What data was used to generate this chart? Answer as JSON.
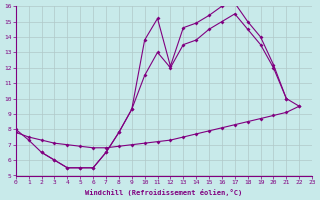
{
  "xlabel": "Windchill (Refroidissement éolien,°C)",
  "bg_color": "#c8eaea",
  "line_color": "#800080",
  "grid_color": "#b0c8c8",
  "line1_x": [
    0,
    1,
    2,
    3,
    4,
    5,
    6,
    7,
    8,
    9,
    10,
    11,
    12,
    13,
    14,
    15,
    16,
    17,
    18,
    19,
    20,
    21
  ],
  "line1_y": [
    8.0,
    7.3,
    6.5,
    6.0,
    5.5,
    5.5,
    5.5,
    6.5,
    7.8,
    9.3,
    13.8,
    15.2,
    12.1,
    14.6,
    14.9,
    15.4,
    16.0,
    16.2,
    15.0,
    14.0,
    12.2,
    10.0
  ],
  "line2_x": [
    0,
    1,
    2,
    3,
    4,
    5,
    6,
    7,
    8,
    9,
    10,
    11,
    12,
    13,
    14,
    15,
    16,
    17,
    18,
    19,
    20,
    21,
    22
  ],
  "line2_y": [
    7.8,
    7.5,
    7.3,
    7.1,
    7.0,
    6.9,
    6.8,
    6.8,
    6.9,
    7.0,
    7.1,
    7.2,
    7.3,
    7.5,
    7.7,
    7.9,
    8.1,
    8.3,
    8.5,
    8.7,
    8.9,
    9.1,
    9.5
  ],
  "line3_x": [
    2,
    3,
    4,
    5,
    6,
    7,
    8,
    9,
    10,
    11,
    12,
    13,
    14,
    15,
    16,
    17,
    18,
    19,
    20,
    21,
    22
  ],
  "line3_y": [
    6.5,
    6.0,
    5.5,
    5.5,
    5.5,
    6.5,
    7.8,
    9.3,
    11.5,
    13.0,
    12.0,
    13.5,
    13.8,
    14.5,
    15.0,
    15.5,
    14.5,
    13.5,
    12.0,
    10.0,
    9.5
  ],
  "xlim": [
    0,
    23
  ],
  "ylim": [
    5,
    16
  ],
  "xticks": [
    0,
    1,
    2,
    3,
    4,
    5,
    6,
    7,
    8,
    9,
    10,
    11,
    12,
    13,
    14,
    15,
    16,
    17,
    18,
    19,
    20,
    21,
    22,
    23
  ],
  "yticks": [
    5,
    6,
    7,
    8,
    9,
    10,
    11,
    12,
    13,
    14,
    15,
    16
  ]
}
